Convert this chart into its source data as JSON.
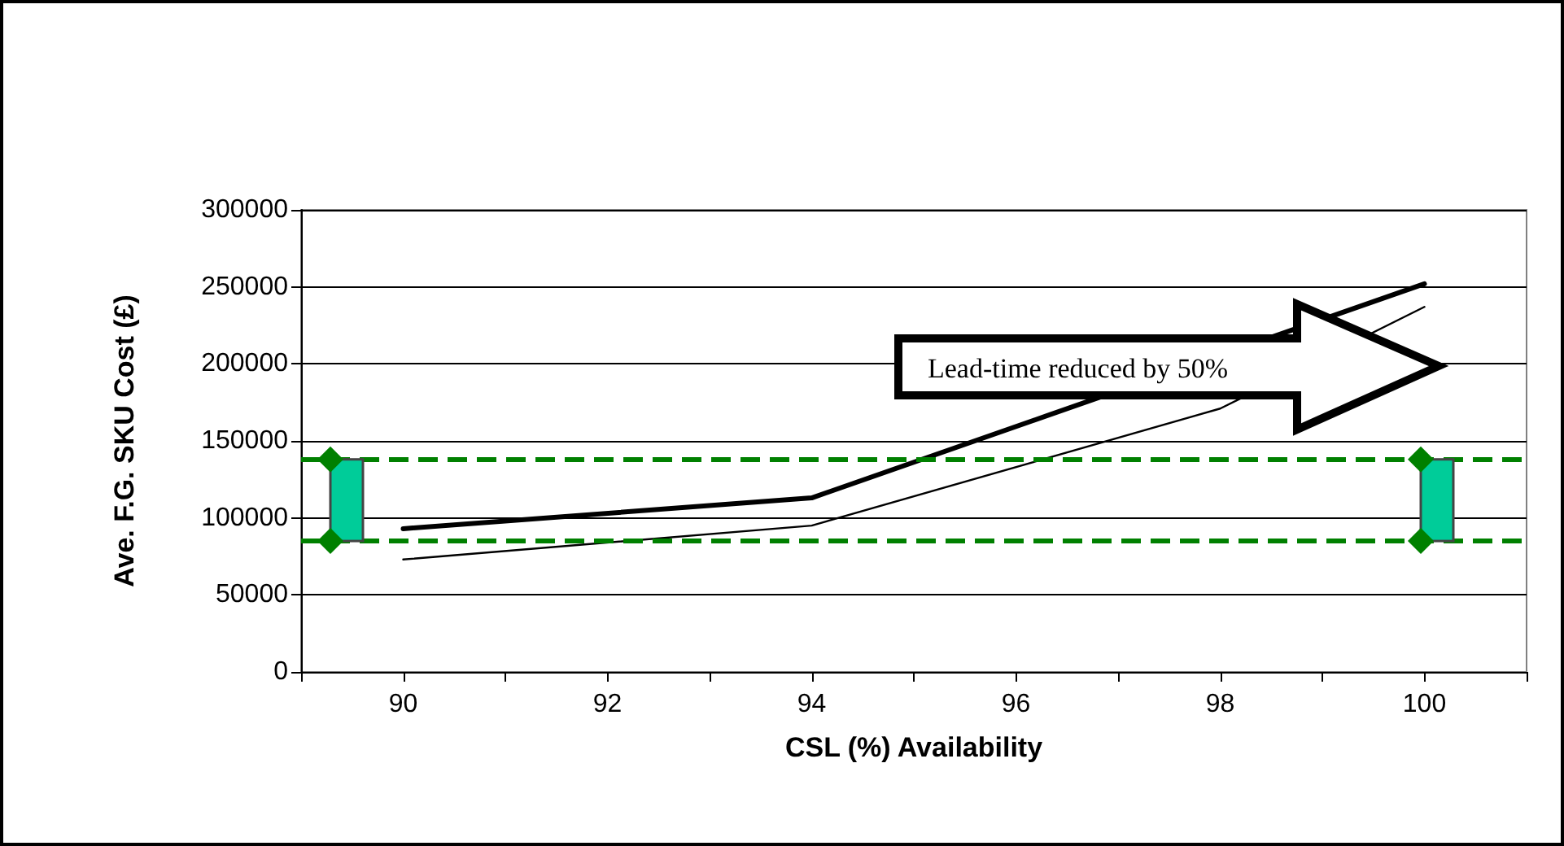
{
  "chart_data": {
    "type": "line",
    "xlabel": "CSL (%) Availability",
    "ylabel": "Ave. F.G. SKU Cost (£)",
    "xlim": [
      89,
      101
    ],
    "xticks": [
      {
        "value": 89,
        "label": null
      },
      {
        "value": 90,
        "label": "90"
      },
      {
        "value": 91,
        "label": null
      },
      {
        "value": 92,
        "label": "92"
      },
      {
        "value": 93,
        "label": null
      },
      {
        "value": 94,
        "label": "94"
      },
      {
        "value": 95,
        "label": null
      },
      {
        "value": 96,
        "label": "96"
      },
      {
        "value": 97,
        "label": null
      },
      {
        "value": 98,
        "label": "98"
      },
      {
        "value": 99,
        "label": null
      },
      {
        "value": 100,
        "label": "100"
      },
      {
        "value": 101,
        "label": null
      }
    ],
    "ylim": [
      0,
      300000
    ],
    "yticks": [
      0,
      50000,
      100000,
      150000,
      200000,
      250000,
      300000
    ],
    "grid": "y",
    "line_style": "solid",
    "series": [
      {
        "color": "#000000",
        "x": [
          90,
          94,
          100
        ],
        "values": [
          93000,
          113000,
          252000
        ]
      },
      {
        "color": "#000000",
        "x": [
          90,
          94,
          98,
          100
        ],
        "values": [
          73000,
          95000,
          171000,
          237000
        ]
      }
    ],
    "ref_lines": [
      {
        "axis": "y",
        "value": 138000,
        "color": "#008000",
        "line_style": "dashed"
      },
      {
        "axis": "y",
        "value": 85000,
        "color": "#008000",
        "line_style": "dashed"
      }
    ],
    "annotations": [
      "Lead-time reduced by 50%"
    ]
  }
}
